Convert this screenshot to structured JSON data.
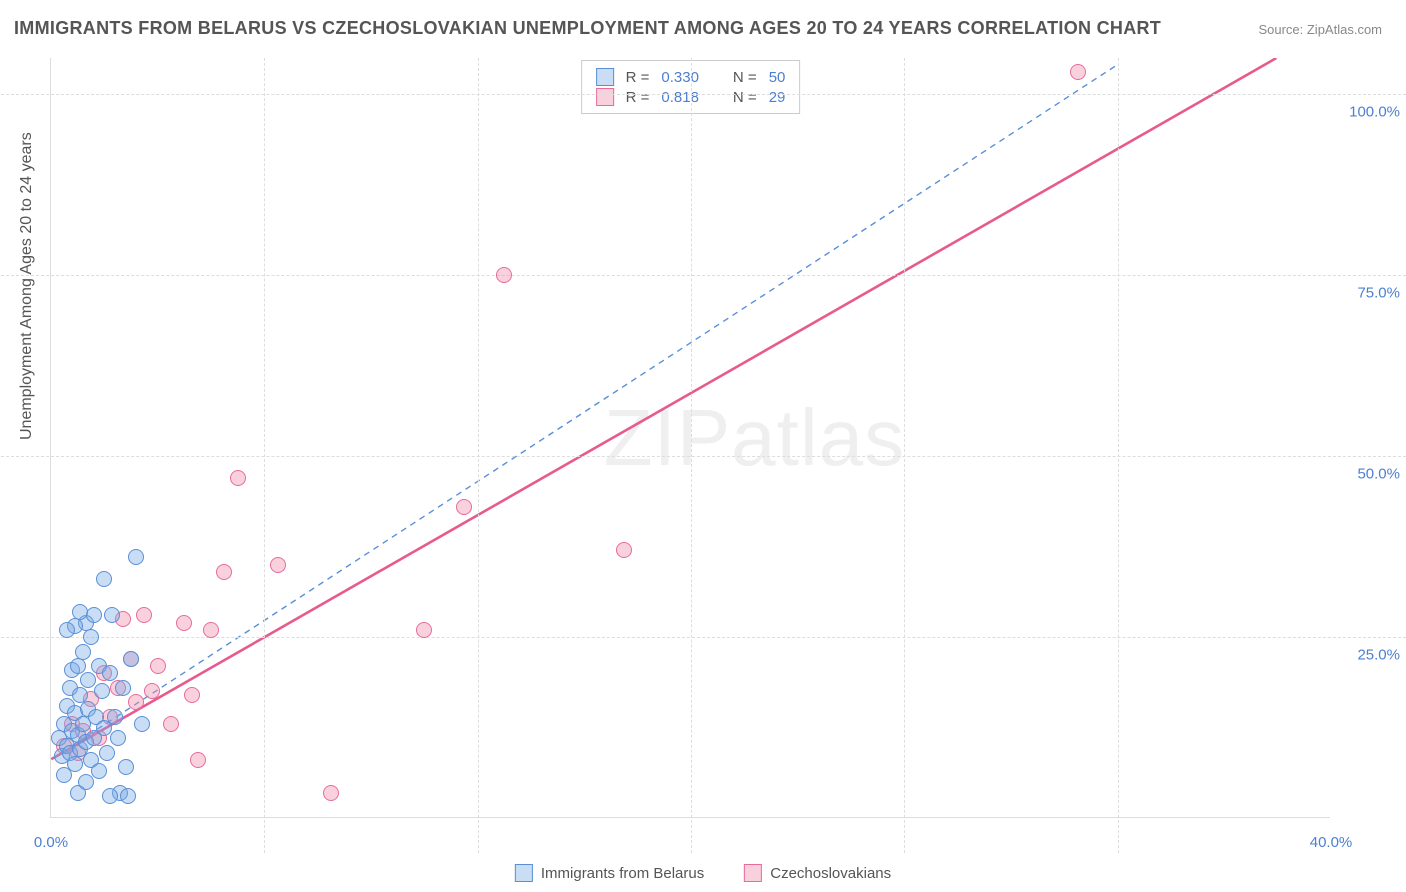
{
  "title": "IMMIGRANTS FROM BELARUS VS CZECHOSLOVAKIAN UNEMPLOYMENT AMONG AGES 20 TO 24 YEARS CORRELATION CHART",
  "source": "Source: ZipAtlas.com",
  "ylabel": "Unemployment Among Ages 20 to 24 years",
  "watermark_a": "ZIP",
  "watermark_b": "atlas",
  "chart": {
    "type": "scatter",
    "xlim": [
      0,
      48
    ],
    "ylim": [
      0,
      105
    ],
    "xticks": [
      {
        "v": 0,
        "label": "0.0%"
      },
      {
        "v": 48,
        "label": "40.0%"
      }
    ],
    "xticks_minor": [
      8,
      16,
      24,
      32,
      40
    ],
    "yticks": [
      {
        "v": 25,
        "label": "25.0%"
      },
      {
        "v": 50,
        "label": "50.0%"
      },
      {
        "v": 75,
        "label": "75.0%"
      },
      {
        "v": 100,
        "label": "100.0%"
      }
    ],
    "xtick_color": "#4c7fd1",
    "ytick_color": "#4c7fd1",
    "grid_color": "#dddddd",
    "background_color": "#ffffff",
    "label_color": "#555555",
    "label_fontsize": 16,
    "tick_fontsize": 15
  },
  "series": {
    "belarus": {
      "label": "Immigrants from Belarus",
      "marker_fill": "rgba(120,170,230,0.40)",
      "marker_stroke": "#5a8fd6",
      "marker_size": 16,
      "trend_color": "#5a8fd6",
      "trend_dash": "6,5",
      "trend_width": 1.4,
      "trend": {
        "x1": 0,
        "y1": 8,
        "x2": 40,
        "y2": 104
      },
      "R": "0.330",
      "N": "50",
      "points": [
        [
          0.3,
          11.0
        ],
        [
          0.4,
          8.5
        ],
        [
          0.5,
          13.0
        ],
        [
          0.5,
          6.0
        ],
        [
          0.6,
          10.0
        ],
        [
          0.6,
          15.5
        ],
        [
          0.7,
          18.0
        ],
        [
          0.7,
          9.0
        ],
        [
          0.8,
          20.5
        ],
        [
          0.8,
          12.0
        ],
        [
          0.9,
          14.5
        ],
        [
          0.9,
          7.5
        ],
        [
          1.0,
          11.5
        ],
        [
          1.0,
          21.0
        ],
        [
          1.1,
          17.0
        ],
        [
          1.1,
          9.5
        ],
        [
          1.2,
          13.0
        ],
        [
          1.2,
          23.0
        ],
        [
          1.3,
          27.0
        ],
        [
          1.3,
          10.5
        ],
        [
          1.4,
          15.0
        ],
        [
          1.4,
          19.0
        ],
        [
          1.5,
          8.0
        ],
        [
          1.5,
          25.0
        ],
        [
          1.6,
          28.0
        ],
        [
          1.6,
          11.0
        ],
        [
          1.7,
          14.0
        ],
        [
          1.8,
          21.0
        ],
        [
          1.8,
          6.5
        ],
        [
          1.9,
          17.5
        ],
        [
          2.0,
          12.5
        ],
        [
          2.1,
          9.0
        ],
        [
          2.2,
          20.0
        ],
        [
          2.3,
          28.0
        ],
        [
          2.4,
          14.0
        ],
        [
          2.5,
          11.0
        ],
        [
          2.6,
          3.5
        ],
        [
          2.7,
          18.0
        ],
        [
          2.8,
          7.0
        ],
        [
          3.0,
          22.0
        ],
        [
          3.2,
          36.0
        ],
        [
          3.4,
          13.0
        ],
        [
          0.9,
          26.5
        ],
        [
          1.1,
          28.5
        ],
        [
          2.0,
          33.0
        ],
        [
          0.6,
          26.0
        ],
        [
          2.9,
          3.0
        ],
        [
          2.2,
          3.0
        ],
        [
          1.0,
          3.5
        ],
        [
          1.3,
          5.0
        ]
      ]
    },
    "czech": {
      "label": "Czechoslovakians",
      "marker_fill": "rgba(240,140,170,0.40)",
      "marker_stroke": "#e86b9c",
      "marker_size": 16,
      "trend_color": "#e75a8e",
      "trend_dash": "none",
      "trend_width": 2.6,
      "trend": {
        "x1": 0,
        "y1": 8,
        "x2": 46,
        "y2": 105
      },
      "R": "0.818",
      "N": "29",
      "points": [
        [
          0.5,
          10.0
        ],
        [
          0.8,
          13.0
        ],
        [
          1.0,
          9.0
        ],
        [
          1.2,
          12.0
        ],
        [
          1.5,
          16.5
        ],
        [
          1.8,
          11.0
        ],
        [
          2.0,
          20.0
        ],
        [
          2.2,
          14.0
        ],
        [
          2.5,
          18.0
        ],
        [
          2.7,
          27.5
        ],
        [
          3.0,
          22.0
        ],
        [
          3.2,
          16.0
        ],
        [
          3.5,
          28.0
        ],
        [
          3.8,
          17.5
        ],
        [
          4.0,
          21.0
        ],
        [
          4.5,
          13.0
        ],
        [
          5.0,
          27.0
        ],
        [
          5.3,
          17.0
        ],
        [
          5.5,
          8.0
        ],
        [
          6.0,
          26.0
        ],
        [
          6.5,
          34.0
        ],
        [
          7.0,
          47.0
        ],
        [
          8.5,
          35.0
        ],
        [
          10.5,
          3.5
        ],
        [
          14.0,
          26.0
        ],
        [
          15.5,
          43.0
        ],
        [
          17.0,
          75.0
        ],
        [
          21.5,
          37.0
        ],
        [
          38.5,
          103.0
        ]
      ]
    }
  },
  "legend_text": {
    "R_label": "R =",
    "N_label": "N ="
  }
}
